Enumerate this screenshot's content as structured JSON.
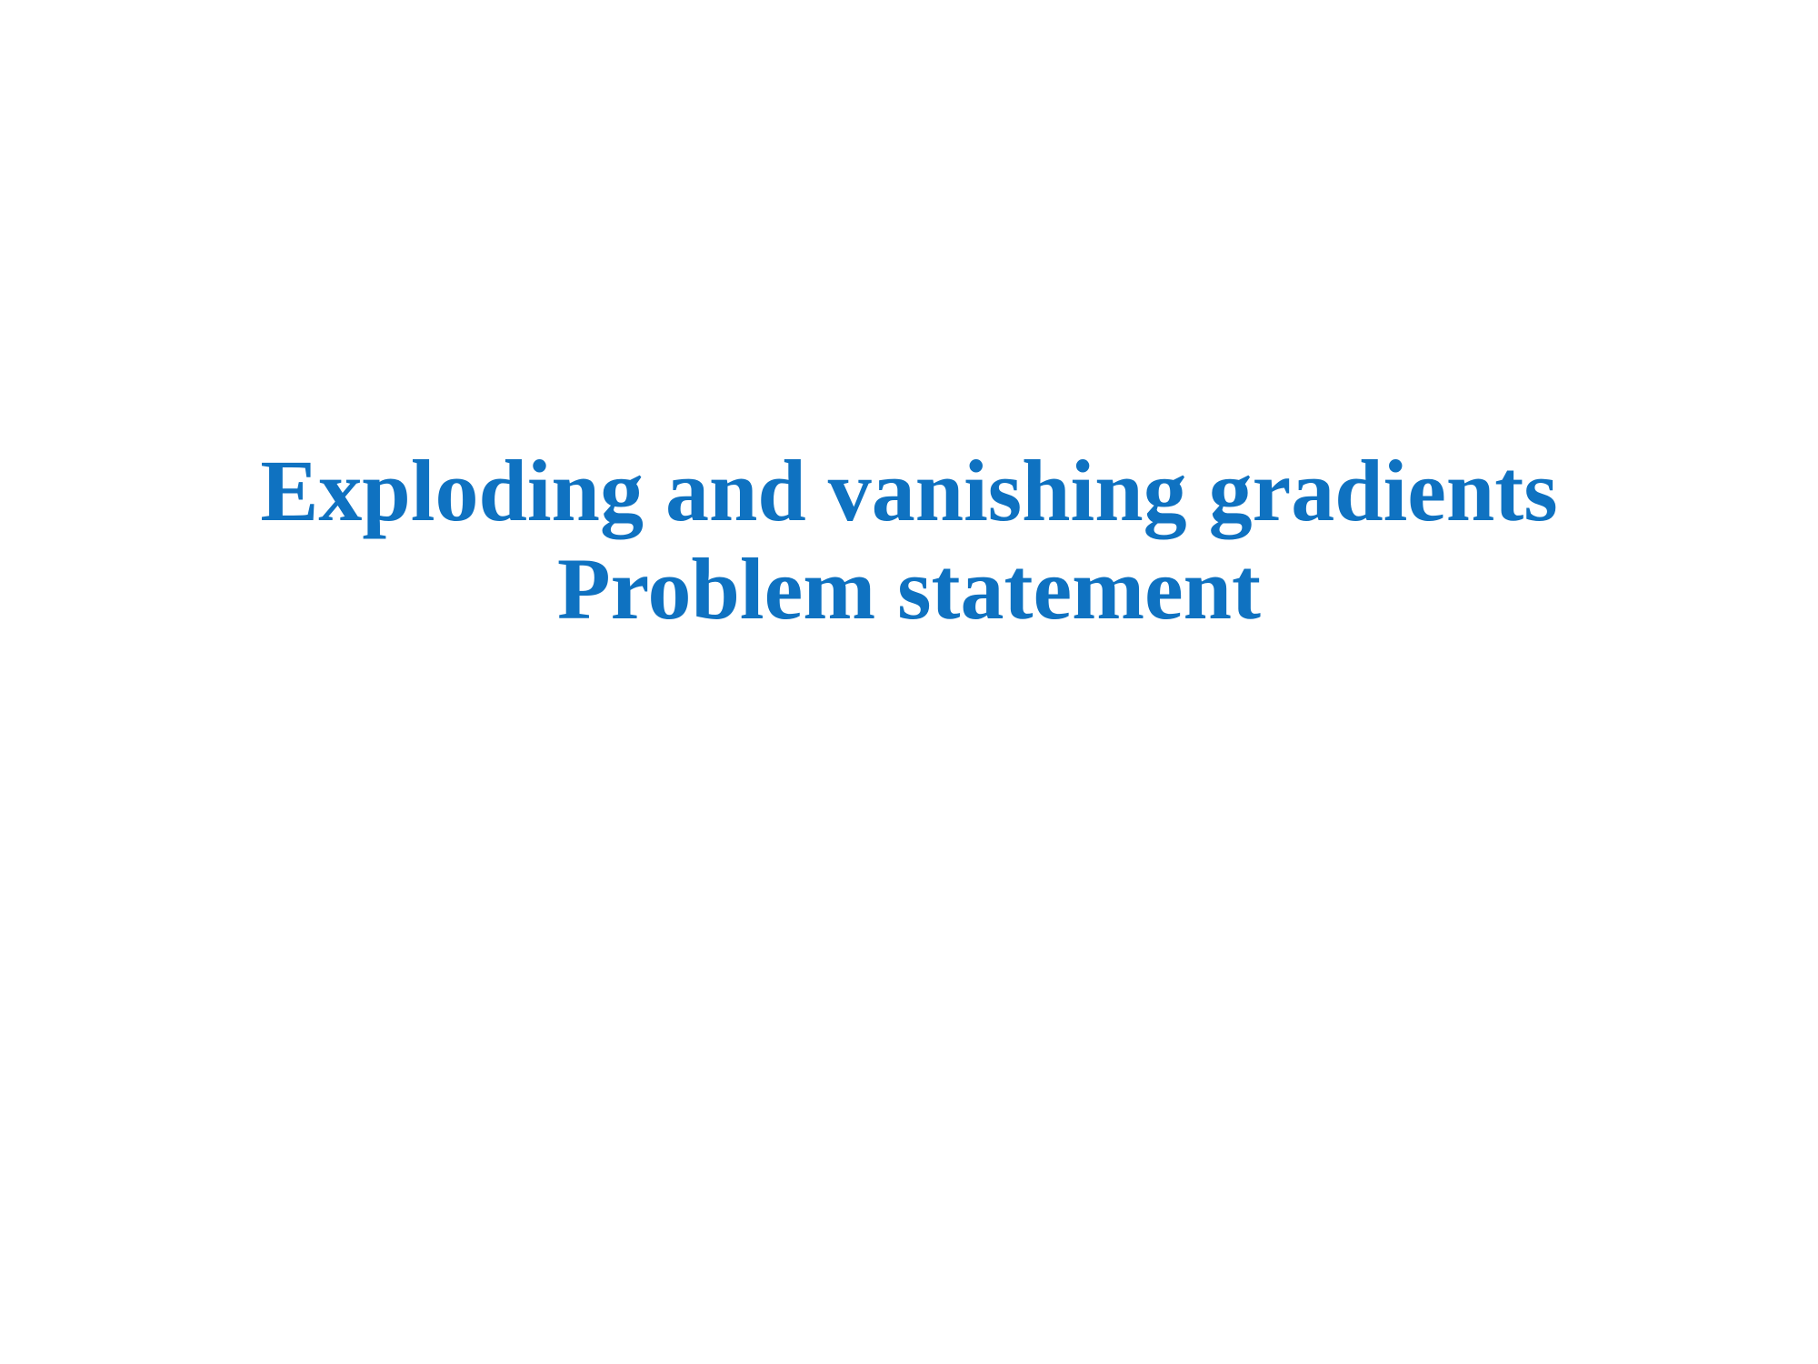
{
  "slide": {
    "title_line_1": "Exploding and vanishing gradients",
    "title_line_2": "Problem statement"
  },
  "colors": {
    "background": "#ffffff",
    "title": "#0f72c1"
  }
}
